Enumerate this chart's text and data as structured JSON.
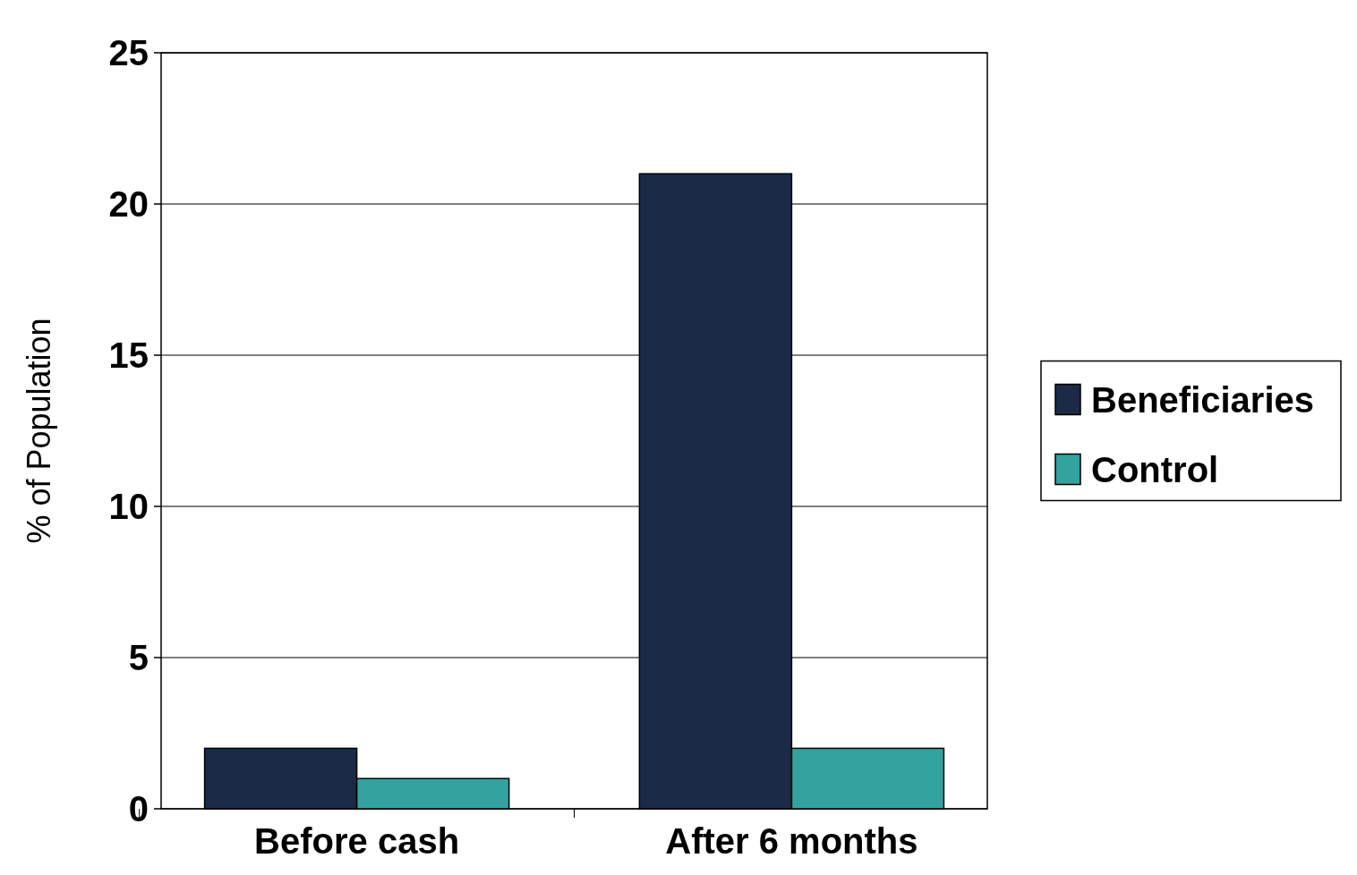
{
  "chart_data": {
    "type": "bar",
    "ylabel": "% of Population",
    "categories": [
      "Before cash",
      "After 6 months"
    ],
    "series": [
      {
        "name": "Beneficiaries",
        "color": "#1b2a47",
        "values": [
          2,
          21
        ]
      },
      {
        "name": "Control",
        "color": "#33a39f",
        "values": [
          1,
          2
        ]
      }
    ],
    "ylim": [
      0,
      25
    ],
    "yticks": [
      0,
      5,
      10,
      15,
      20,
      25
    ],
    "grid": "y",
    "legend": "right"
  }
}
